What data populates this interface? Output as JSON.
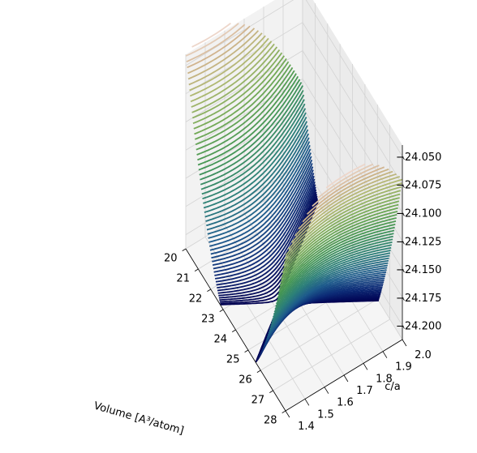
{
  "chart_data": {
    "type": "surface3d",
    "title": "",
    "xlabel": "Volume [$A^3$/atom]",
    "xlabel_display": "Volume [A³/atom]",
    "ylabel": "c/a",
    "zlabel": "",
    "xlim": [
      20,
      28
    ],
    "ylim": [
      1.4,
      2.0
    ],
    "zlim": [
      -24.2125,
      -24.04
    ],
    "z_tick_labels_printed": [
      "−24.050",
      "−24.075",
      "−24.100",
      "−24.125",
      "−24.150",
      "−24.175",
      "−24.200"
    ],
    "x_ticks": [
      20,
      21,
      22,
      23,
      24,
      25,
      26,
      27,
      28
    ],
    "y_ticks": [
      1.4,
      1.5,
      1.6,
      1.7,
      1.8,
      1.9,
      2.0
    ],
    "z_ticks": [
      -24.05,
      -24.075,
      -24.1,
      -24.125,
      -24.15,
      -24.175,
      -24.2
    ],
    "colormap": "gist_earth",
    "minimum": {
      "volume": 24.0,
      "c_over_a": 1.62,
      "energy": -24.2125
    },
    "corner_values": [
      {
        "volume": 20,
        "c_over_a": 1.4,
        "energy": -24.04
      },
      {
        "volume": 20,
        "c_over_a": 2.0,
        "energy": -24.13
      },
      {
        "volume": 28,
        "c_over_a": 1.4,
        "energy": -24.14
      },
      {
        "volume": 28,
        "c_over_a": 2.0,
        "energy": -24.07
      }
    ],
    "contour_levels": 60,
    "grid": true
  },
  "axes": {
    "x_ticks": [
      "20",
      "21",
      "22",
      "23",
      "24",
      "25",
      "26",
      "27",
      "28"
    ],
    "y_ticks": [
      "1.4",
      "1.5",
      "1.6",
      "1.7",
      "1.8",
      "1.9",
      "2.0"
    ],
    "z_ticks": [
      "−24.050",
      "−24.075",
      "−24.100",
      "−24.125",
      "−24.150",
      "−24.175",
      "−24.200"
    ],
    "x_label": "Volume [A³/atom]",
    "y_label": "c/a"
  },
  "colors": {
    "pane_left": "#f2f2f2",
    "pane_back": "#ebebeb",
    "pane_floor": "#f5f5f5",
    "grid": "#d3d3d3",
    "axis": "#000000"
  }
}
